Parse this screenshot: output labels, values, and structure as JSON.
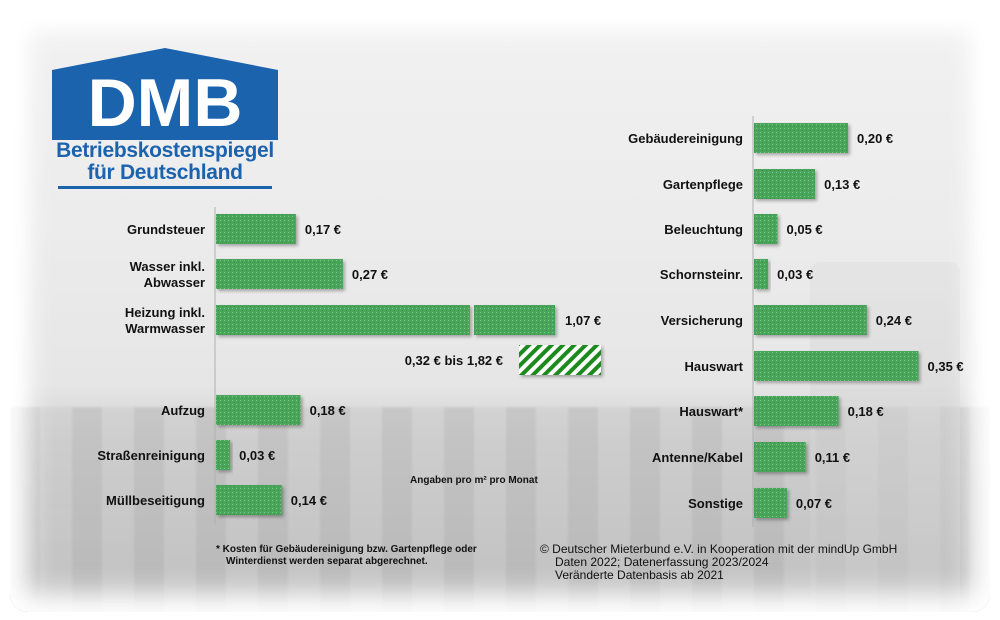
{
  "logo": {
    "abbr": "DMB",
    "line1": "Betriebskostenspiegel",
    "line2": "für Deutschland",
    "brand_color": "#1c63ae"
  },
  "chart_data": [
    {
      "type": "bar",
      "orientation": "horizontal",
      "title": "",
      "unit": "€ pro m² pro Monat",
      "categories": [
        "Grundsteuer",
        "Wasser inkl. Abwasser",
        "Heizung inkl. Warmwasser",
        "Aufzug",
        "Straßenreinigung",
        "Müllbeseitigung"
      ],
      "category_lines": [
        [
          "Grundsteuer"
        ],
        [
          "Wasser inkl.",
          "Abwasser"
        ],
        [
          "Heizung inkl.",
          "Warmwasser"
        ],
        [
          "Aufzug"
        ],
        [
          "Straßenreinigung"
        ],
        [
          "Müllbeseitigung"
        ]
      ],
      "values": [
        0.17,
        0.27,
        1.07,
        0.18,
        0.03,
        0.14
      ],
      "value_labels": [
        "0,17 €",
        "0,27 €",
        "1,07 €",
        "0,18 €",
        "0,03 €",
        "0,14 €"
      ],
      "broken_axis_bars": [
        "Heizung inkl. Warmwasser"
      ],
      "range_annotation": {
        "category": "Heizung inkl. Warmwasser",
        "min": 0.32,
        "max": 1.82,
        "label": "0,32 € bis 1,82 €"
      },
      "bar_color": "#4aa55a",
      "range_color": "#1f8a1f",
      "grid": false
    },
    {
      "type": "bar",
      "orientation": "horizontal",
      "title": "",
      "unit": "€ pro m² pro Monat",
      "categories": [
        "Gebäudereinigung",
        "Gartenpflege",
        "Beleuchtung",
        "Schornsteinr.",
        "Versicherung",
        "Hauswart",
        "Hauswart*",
        "Antenne/Kabel",
        "Sonstige"
      ],
      "category_lines": [
        [
          "Gebäudereinigung"
        ],
        [
          "Gartenpflege"
        ],
        [
          "Beleuchtung"
        ],
        [
          "Schornsteinr."
        ],
        [
          "Versicherung"
        ],
        [
          "Hauswart"
        ],
        [
          "Hauswart*"
        ],
        [
          "Antenne/Kabel"
        ],
        [
          "Sonstige"
        ]
      ],
      "values": [
        0.2,
        0.13,
        0.05,
        0.03,
        0.24,
        0.35,
        0.18,
        0.11,
        0.07
      ],
      "value_labels": [
        "0,20 €",
        "0,13 €",
        "0,05 €",
        "0,03 €",
        "0,24 €",
        "0,35 €",
        "0,18 €",
        "0,11 €",
        "0,07 €"
      ],
      "bar_color": "#4aa55a",
      "grid": false
    }
  ],
  "notes": {
    "unit_note": "Angaben pro m² pro Monat",
    "footnote_line1": "* Kosten für Gebäudereinigung bzw. Gartenpflege oder",
    "footnote_line2": "Winterdienst werden separat abgerechnet.",
    "copyright_line1": "© Deutscher Mieterbund e.V. in Kooperation mit der mindUp GmbH",
    "copyright_line2": "Daten 2022; Datenerfassung 2023/2024",
    "copyright_line3": "Veränderte Datenbasis ab 2021"
  }
}
